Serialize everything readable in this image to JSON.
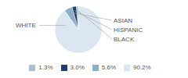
{
  "chart_data": {
    "type": "pie",
    "categories": [
      "WHITE",
      "ASIAN",
      "HISPANIC",
      "BLACK"
    ],
    "values": [
      90.2,
      5.6,
      3.0,
      1.3
    ],
    "value_labels": [
      "90.2%",
      "5.6%",
      "3.0%",
      "1.3%"
    ],
    "colors": [
      "#dce6f1",
      "#8aafc7",
      "#1f3f6e",
      "#a8bfd8"
    ],
    "legend": "bottom"
  }
}
